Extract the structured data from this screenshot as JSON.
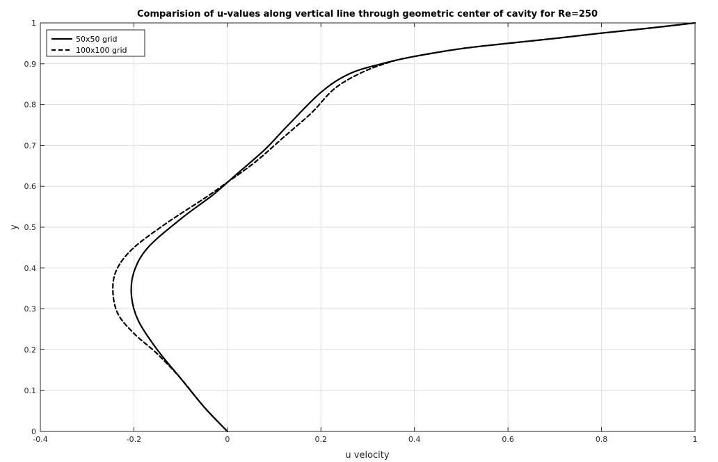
{
  "chart_data": {
    "type": "line",
    "title": "Comparision of u-values along vertical line through geometric center of cavity for Re=250",
    "xlabel": "u velocity",
    "ylabel": "y",
    "xlim": [
      -0.4,
      1
    ],
    "ylim": [
      0,
      1
    ],
    "xticks": [
      -0.4,
      -0.2,
      0,
      0.2,
      0.4,
      0.6,
      0.8,
      1
    ],
    "yticks": [
      0,
      0.1,
      0.2,
      0.3,
      0.4,
      0.5,
      0.6,
      0.7,
      0.8,
      0.9,
      1
    ],
    "grid": true,
    "legend_position": "top-left",
    "series": [
      {
        "name": "50x50 grid",
        "style": "solid",
        "color": "#000000",
        "points": [
          [
            0,
            0
          ],
          [
            -0.05,
            0.06
          ],
          [
            -0.1,
            0.13
          ],
          [
            -0.15,
            0.2
          ],
          [
            -0.19,
            0.27
          ],
          [
            -0.205,
            0.33
          ],
          [
            -0.2,
            0.39
          ],
          [
            -0.17,
            0.45
          ],
          [
            -0.1,
            0.52
          ],
          [
            -0.03,
            0.58
          ],
          [
            0.02,
            0.63
          ],
          [
            0.08,
            0.69
          ],
          [
            0.13,
            0.75
          ],
          [
            0.2,
            0.83
          ],
          [
            0.26,
            0.875
          ],
          [
            0.33,
            0.9
          ],
          [
            0.4,
            0.918
          ],
          [
            0.5,
            0.937
          ],
          [
            0.6,
            0.95
          ],
          [
            0.7,
            0.962
          ],
          [
            0.8,
            0.975
          ],
          [
            0.9,
            0.987
          ],
          [
            1.0,
            1.0
          ]
        ]
      },
      {
        "name": "100x100 grid",
        "style": "dashed",
        "color": "#000000",
        "points": [
          [
            0,
            0
          ],
          [
            -0.05,
            0.06
          ],
          [
            -0.1,
            0.13
          ],
          [
            -0.15,
            0.19
          ],
          [
            -0.2,
            0.24
          ],
          [
            -0.235,
            0.29
          ],
          [
            -0.245,
            0.35
          ],
          [
            -0.235,
            0.4
          ],
          [
            -0.2,
            0.45
          ],
          [
            -0.13,
            0.51
          ],
          [
            -0.05,
            0.57
          ],
          [
            0.0,
            0.61
          ],
          [
            0.06,
            0.66
          ],
          [
            0.12,
            0.72
          ],
          [
            0.18,
            0.78
          ],
          [
            0.23,
            0.84
          ],
          [
            0.29,
            0.88
          ],
          [
            0.35,
            0.905
          ],
          [
            0.4,
            0.918
          ],
          [
            0.5,
            0.937
          ],
          [
            0.6,
            0.95
          ],
          [
            0.7,
            0.962
          ],
          [
            0.8,
            0.975
          ],
          [
            0.9,
            0.987
          ],
          [
            1.0,
            1.0
          ]
        ]
      }
    ]
  }
}
